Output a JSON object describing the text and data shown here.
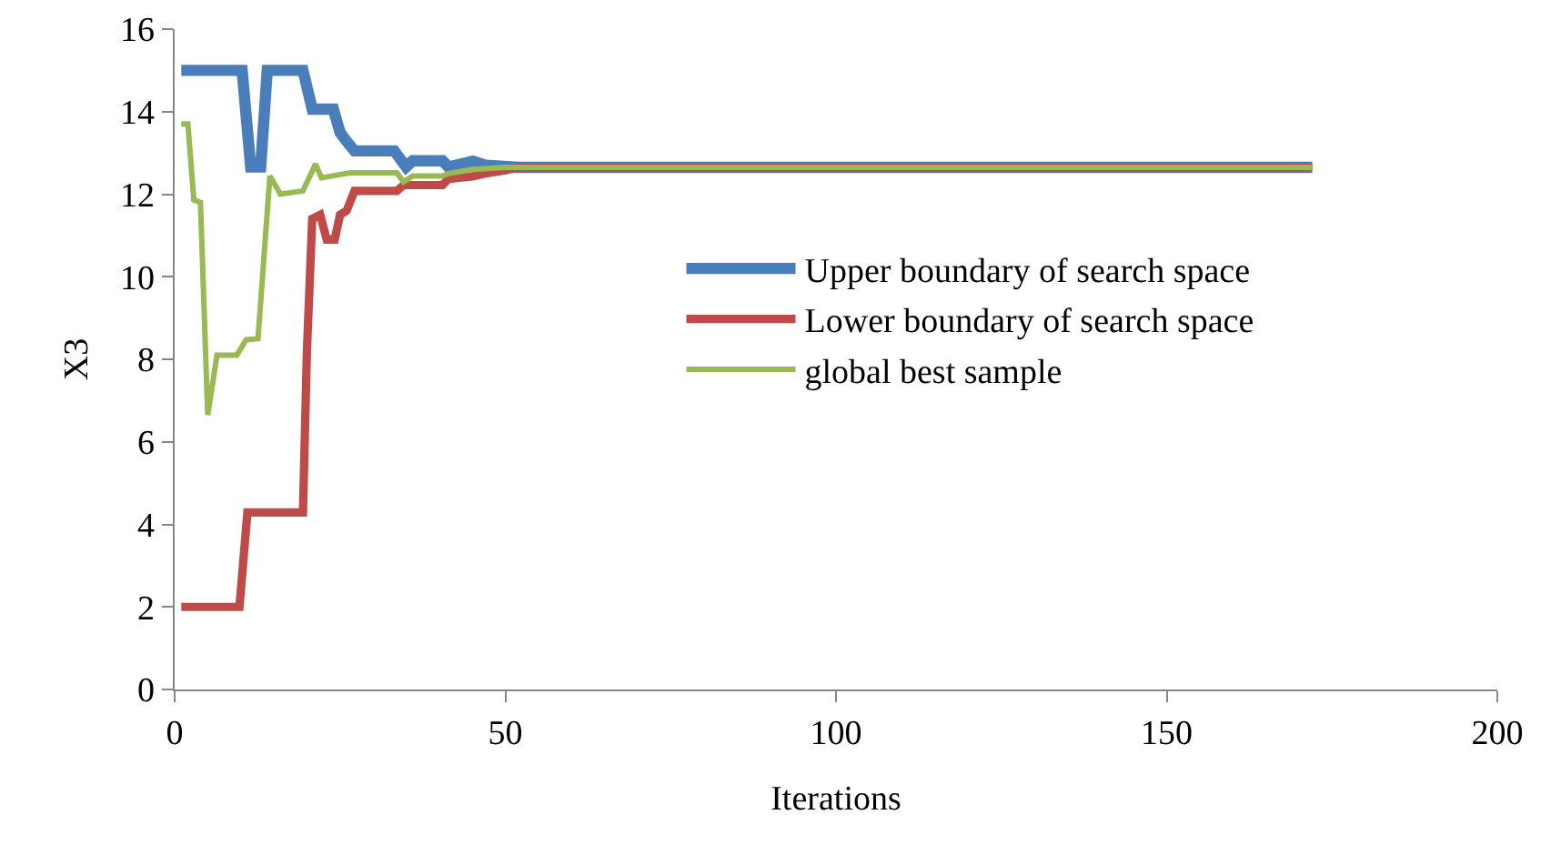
{
  "chart_data": {
    "type": "line",
    "xlabel": "Iterations",
    "ylabel": "X3",
    "xlim": [
      0,
      200
    ],
    "xticks": [
      0,
      50,
      100,
      150,
      200
    ],
    "ylim": [
      0,
      16
    ],
    "yticks": [
      0,
      2,
      4,
      6,
      8,
      10,
      12,
      14,
      16
    ],
    "grid": false,
    "legend": "right",
    "marker": "none",
    "line_style": "solid",
    "series": [
      {
        "name": "Upper boundary of search space",
        "color": "#4a7ebb",
        "x": [
          1,
          10.2,
          11.5,
          13,
          14,
          19.4,
          20.8,
          24,
          25,
          25.9,
          27.2,
          33.2,
          35,
          36,
          40.5,
          41.4,
          45.1,
          47,
          52,
          172
        ],
        "values": [
          15,
          15,
          12.66,
          12.66,
          15,
          15,
          14.06,
          14.06,
          13.5,
          13.3,
          13.05,
          13.05,
          12.66,
          12.81,
          12.81,
          12.66,
          12.8,
          12.7,
          12.65,
          12.65
        ]
      },
      {
        "name": "Lower boundary of search space",
        "color": "#be4b48",
        "x": [
          1,
          9.8,
          11,
          19.4,
          20,
          20.8,
          22,
          23,
          24.2,
          25,
          26,
          27.2,
          33.6,
          34.6,
          40.5,
          41.4,
          45,
          47,
          50,
          52,
          172
        ],
        "values": [
          2,
          2,
          4.29,
          4.29,
          8.2,
          11.4,
          11.5,
          10.9,
          10.9,
          11.5,
          11.6,
          12.08,
          12.08,
          12.22,
          12.22,
          12.37,
          12.43,
          12.5,
          12.58,
          12.65,
          12.65
        ]
      },
      {
        "name": "global best sample",
        "color": "#98b954",
        "x": [
          1,
          2,
          2.9,
          3.9,
          5,
          6.4,
          9.4,
          10.8,
          12.6,
          14.4,
          16,
          19.4,
          21.3,
          22.2,
          26.6,
          33.6,
          34.6,
          36,
          40.5,
          41.4,
          45,
          50,
          172
        ],
        "values": [
          13.7,
          13.7,
          11.86,
          11.8,
          6.65,
          8.1,
          8.1,
          8.47,
          8.5,
          12.44,
          12.0,
          12.08,
          12.73,
          12.4,
          12.52,
          12.52,
          12.3,
          12.44,
          12.44,
          12.5,
          12.6,
          12.65,
          12.65
        ]
      }
    ]
  }
}
